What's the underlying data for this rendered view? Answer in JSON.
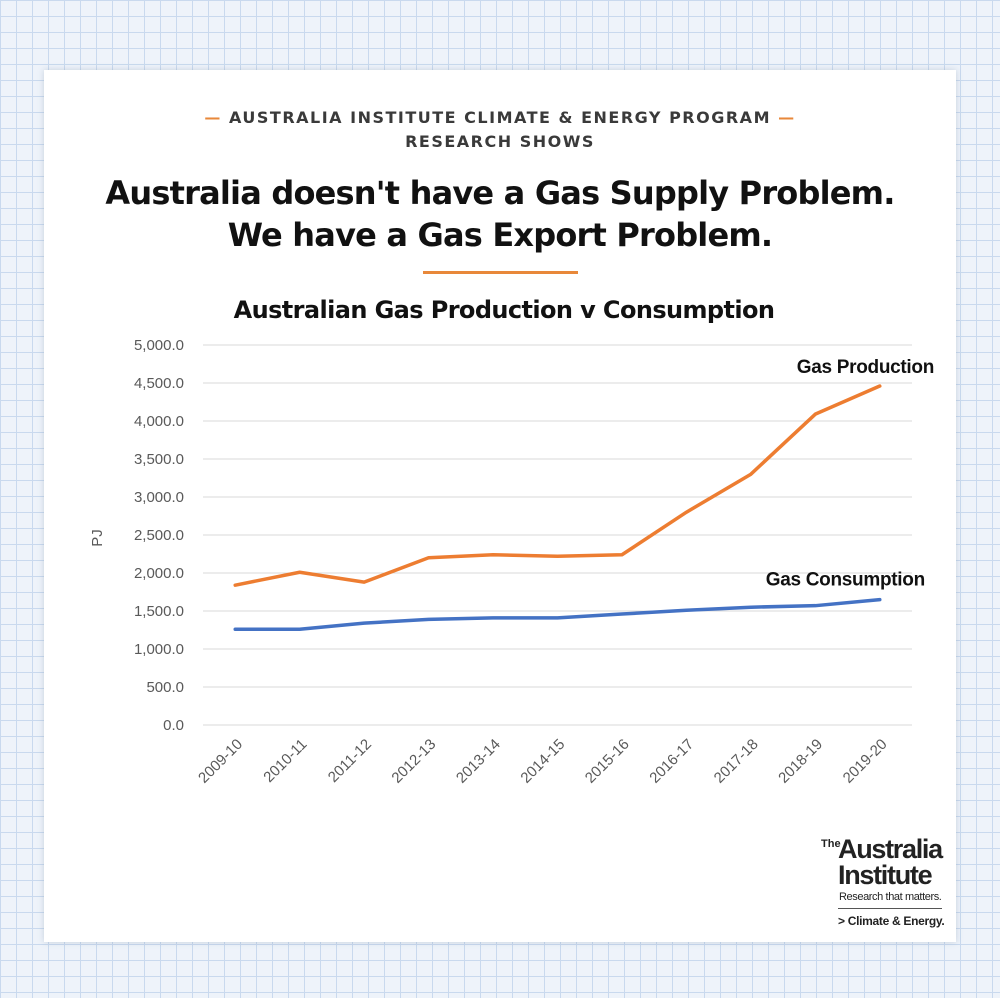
{
  "header": {
    "kicker_line1": "AUSTRALIA INSTITUTE CLIMATE & ENERGY PROGRAM",
    "kicker_line2": "RESEARCH SHOWS",
    "dash": "—",
    "headline_line1": "Australia doesn't have a Gas Supply Problem.",
    "headline_line2": "We have a Gas Export Problem."
  },
  "colors": {
    "accent": "#e8883a",
    "production_line": "#ed7d31",
    "consumption_line": "#4472c4",
    "gridline": "#d9d9d9",
    "tick_text": "#595959"
  },
  "chart_data": {
    "type": "line",
    "title": "Australian Gas Production v Consumption",
    "ylabel": "PJ",
    "xlabel": "",
    "ylim": [
      0,
      5000
    ],
    "y_ticks": [
      "0.0",
      "500.0",
      "1,000.0",
      "1,500.0",
      "2,000.0",
      "2,500.0",
      "3,000.0",
      "3,500.0",
      "4,000.0",
      "4,500.0",
      "5,000.0"
    ],
    "grid": true,
    "categories": [
      "2009-10",
      "2010-11",
      "2011-12",
      "2012-13",
      "2013-14",
      "2014-15",
      "2015-16",
      "2016-17",
      "2017-18",
      "2018-19",
      "2019-20"
    ],
    "series": [
      {
        "name": "Gas Production",
        "color": "#ed7d31",
        "values": [
          1840,
          2010,
          1880,
          2200,
          2240,
          2220,
          2240,
          2800,
          3300,
          4090,
          4460
        ]
      },
      {
        "name": "Gas Consumption",
        "color": "#4472c4",
        "values": [
          1260,
          1260,
          1340,
          1390,
          1410,
          1410,
          1460,
          1510,
          1550,
          1570,
          1650
        ]
      }
    ]
  },
  "logo": {
    "the": "The",
    "name_line1": "Australia",
    "name_line2": "Institute",
    "tagline": "Research that matters.",
    "program": "> Climate & Energy."
  }
}
